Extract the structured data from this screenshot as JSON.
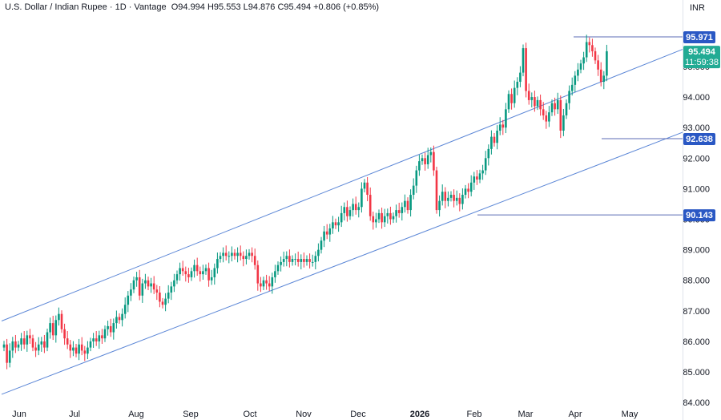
{
  "header": {
    "symbol": "U.S. Dollar / Indian Rupee",
    "interval": "1D",
    "broker": "Vantage",
    "open": "O94.994",
    "high": "H95.553",
    "low": "L94.876",
    "close": "C95.494",
    "change": "+0.806 (+0.85%)"
  },
  "currency": "INR",
  "colors": {
    "up": "#089981",
    "down": "#f23645",
    "channel": "#5b86d6",
    "level_label_bg": "#2a58c4",
    "current_bg": "#22ab94",
    "horizontal_line": "#5b6bb5"
  },
  "chart_data": {
    "type": "candlestick",
    "y_range": [
      83.9,
      96.6
    ],
    "y_ticks": [
      "84.000",
      "85.000",
      "86.000",
      "87.000",
      "88.000",
      "89.000",
      "90.000",
      "91.000",
      "92.000",
      "93.000",
      "94.000",
      "95.000"
    ],
    "x_labels": [
      "Jun",
      "Jul",
      "Aug",
      "Sep",
      "Oct",
      "Nov",
      "Dec",
      "2026",
      "Feb",
      "Mar",
      "Apr",
      "May"
    ],
    "x_label_bold": "2026",
    "levels": [
      {
        "label": "95.971",
        "value": 95.971,
        "kind": "level"
      },
      {
        "label": "92.638",
        "value": 92.638,
        "kind": "level"
      },
      {
        "label": "90.143",
        "value": 90.143,
        "kind": "level"
      }
    ],
    "current_price": {
      "label": "95.494",
      "countdown": "11:59:38",
      "value": 95.494
    },
    "channel": {
      "upper": [
        {
          "bar": 0,
          "value": 86.7
        },
        {
          "bar": 223,
          "value": 95.1
        }
      ],
      "lower": [
        {
          "bar": 0,
          "value": 84.3
        },
        {
          "bar": 223,
          "value": 92.4
        }
      ]
    },
    "closes": [
      85.9,
      85.3,
      85.7,
      86.0,
      85.8,
      85.9,
      86.1,
      85.9,
      86.2,
      86.1,
      85.8,
      85.7,
      85.9,
      86.0,
      85.8,
      86.3,
      86.6,
      86.2,
      86.7,
      86.9,
      86.4,
      86.1,
      85.9,
      85.7,
      85.8,
      85.6,
      85.9,
      85.7,
      85.6,
      85.8,
      86.0,
      86.1,
      86.0,
      86.2,
      86.1,
      86.4,
      86.5,
      86.3,
      86.6,
      86.8,
      86.7,
      86.9,
      87.2,
      87.5,
      87.7,
      88.0,
      88.1,
      87.5,
      87.9,
      88.0,
      87.8,
      87.9,
      87.7,
      87.6,
      87.3,
      87.2,
      87.4,
      87.6,
      87.8,
      88.0,
      88.2,
      88.4,
      88.3,
      88.2,
      88.1,
      88.3,
      88.5,
      88.3,
      88.2,
      88.3,
      88.4,
      88.0,
      88.1,
      88.4,
      88.7,
      88.8,
      88.9,
      88.8,
      88.8,
      88.9,
      88.8,
      88.9,
      88.8,
      88.7,
      88.8,
      88.9,
      88.8,
      88.5,
      87.9,
      87.8,
      88.0,
      87.9,
      87.8,
      88.1,
      88.3,
      88.5,
      88.6,
      88.7,
      88.8,
      88.6,
      88.7,
      88.7,
      88.6,
      88.7,
      88.6,
      88.7,
      88.6,
      88.6,
      88.8,
      89.0,
      89.3,
      89.6,
      89.5,
      89.7,
      89.9,
      89.8,
      89.9,
      90.2,
      90.4,
      90.1,
      90.3,
      90.5,
      90.3,
      90.4,
      91.0,
      91.2,
      90.8,
      90.1,
      89.9,
      90.0,
      90.2,
      89.9,
      90.1,
      90.2,
      90.0,
      90.1,
      90.3,
      90.2,
      90.4,
      90.6,
      90.3,
      90.8,
      91.1,
      91.6,
      91.9,
      92.0,
      91.8,
      92.1,
      92.2,
      91.6,
      90.3,
      90.6,
      90.9,
      90.6,
      90.7,
      90.8,
      90.6,
      90.7,
      90.5,
      90.8,
      91.0,
      90.9,
      91.2,
      91.4,
      91.3,
      91.5,
      91.6,
      92.0,
      92.3,
      92.7,
      92.5,
      92.9,
      93.1,
      93.0,
      93.6,
      94.1,
      93.8,
      94.3,
      94.5,
      94.8,
      95.6,
      94.2,
      93.9,
      94.0,
      93.7,
      93.9,
      93.6,
      93.4,
      93.2,
      93.5,
      93.8,
      93.6,
      93.9,
      92.9,
      93.4,
      93.8,
      94.2,
      94.4,
      94.7,
      94.9,
      95.1,
      95.3,
      95.8,
      95.7,
      95.5,
      95.2,
      94.9,
      94.5,
      94.7,
      95.5
    ]
  }
}
